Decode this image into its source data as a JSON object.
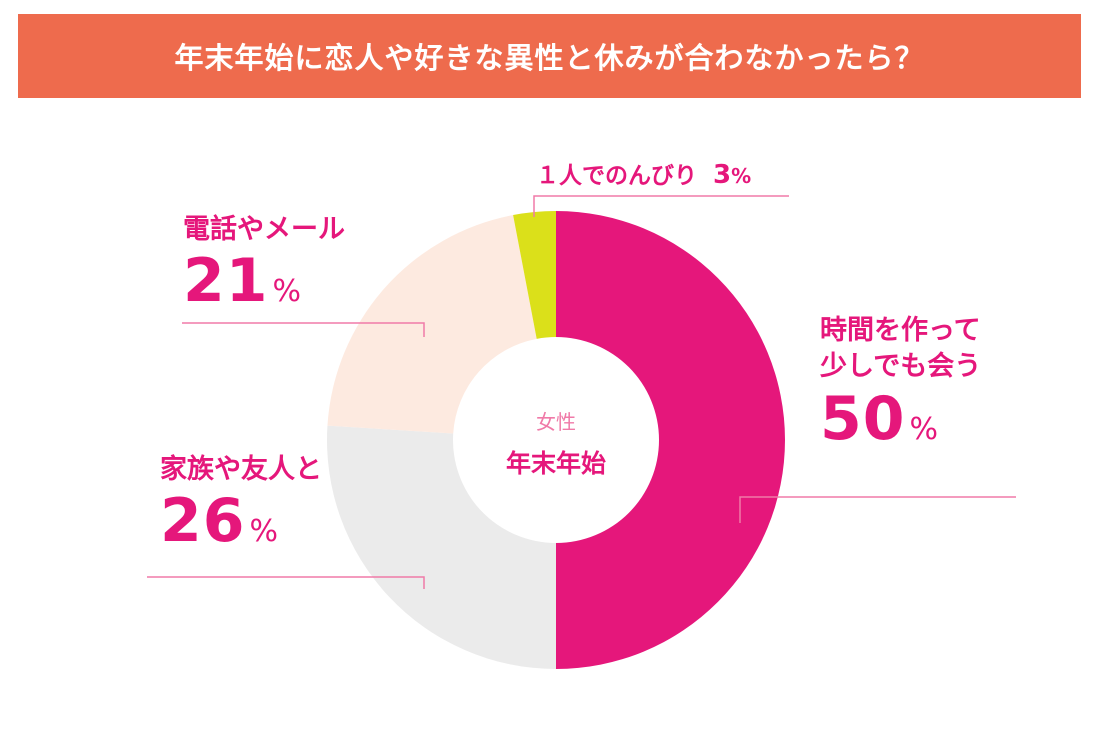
{
  "banner": {
    "title": "年末年始に恋人や好きな異性と休みが合わなかったら？",
    "color": "#ee6b4d"
  },
  "center": {
    "subtitle": "女性",
    "title": "年末年始"
  },
  "unit": "%",
  "chart_data": {
    "type": "pie",
    "style": "donut",
    "title": "年末年始に恋人や好きな異性と休みが合わなかったら？",
    "categories": [
      "時間を作って少しでも会う",
      "家族や友人と",
      "電話やメール",
      "１人でのんびり"
    ],
    "values": [
      50,
      26,
      21,
      3
    ],
    "colors": [
      "#e5177b",
      "#ebebeb",
      "#fdeae0",
      "#dbe01a"
    ],
    "start_angle": "12 o'clock",
    "direction": "clockwise"
  },
  "labels": {
    "slice0": {
      "name_line1": "時間を作って",
      "name_line2": "少しでも会う",
      "value": "50"
    },
    "slice1": {
      "name": "家族や友人と",
      "value": "26"
    },
    "slice2": {
      "name": "電話やメール",
      "value": "21"
    },
    "slice3": {
      "name": "１人でのんびり",
      "value": "3"
    }
  }
}
